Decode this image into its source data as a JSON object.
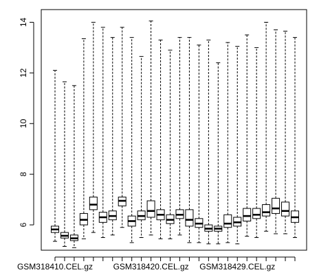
{
  "chart_data": {
    "type": "boxplot",
    "title": "",
    "xlabel": "",
    "ylabel": "",
    "ylim": [
      5,
      14.5
    ],
    "yticks": [
      6,
      8,
      10,
      12,
      14
    ],
    "x_tick_labels": [
      {
        "index": 0,
        "label": "GSM318410.CEL.gz"
      },
      {
        "index": 10,
        "label": "GSM318420.CEL.gz"
      },
      {
        "index": 19,
        "label": "GSM318429.CEL.gz"
      }
    ],
    "boxes": [
      {
        "min": 5.35,
        "q1": 5.7,
        "median": 5.82,
        "q3": 5.95,
        "max": 12.1
      },
      {
        "min": 5.15,
        "q1": 5.48,
        "median": 5.57,
        "q3": 5.7,
        "max": 11.65
      },
      {
        "min": 5.1,
        "q1": 5.38,
        "median": 5.47,
        "q3": 5.6,
        "max": 11.5
      },
      {
        "min": 5.45,
        "q1": 6.0,
        "median": 6.2,
        "q3": 6.45,
        "max": 13.35
      },
      {
        "min": 5.7,
        "q1": 6.6,
        "median": 6.8,
        "q3": 7.1,
        "max": 14.0
      },
      {
        "min": 5.5,
        "q1": 6.1,
        "median": 6.3,
        "q3": 6.5,
        "max": 13.8
      },
      {
        "min": 5.6,
        "q1": 6.2,
        "median": 6.35,
        "q3": 6.55,
        "max": 13.4
      },
      {
        "min": 5.9,
        "q1": 6.75,
        "median": 6.95,
        "q3": 7.1,
        "max": 13.8
      },
      {
        "min": 5.3,
        "q1": 5.95,
        "median": 6.15,
        "q3": 6.35,
        "max": 13.4
      },
      {
        "min": 5.5,
        "q1": 6.2,
        "median": 6.35,
        "q3": 6.55,
        "max": 12.65
      },
      {
        "min": 5.6,
        "q1": 6.3,
        "median": 6.55,
        "q3": 6.95,
        "max": 14.05
      },
      {
        "min": 5.45,
        "q1": 6.2,
        "median": 6.4,
        "q3": 6.6,
        "max": 13.3
      },
      {
        "min": 5.45,
        "q1": 6.05,
        "median": 6.2,
        "q3": 6.4,
        "max": 12.9
      },
      {
        "min": 5.6,
        "q1": 6.25,
        "median": 6.4,
        "q3": 6.6,
        "max": 13.4
      },
      {
        "min": 5.3,
        "q1": 5.95,
        "median": 6.2,
        "q3": 6.6,
        "max": 13.4
      },
      {
        "min": 5.3,
        "q1": 5.9,
        "median": 6.05,
        "q3": 6.25,
        "max": 13.1
      },
      {
        "min": 5.25,
        "q1": 5.75,
        "median": 5.85,
        "q3": 6.0,
        "max": 13.3
      },
      {
        "min": 5.25,
        "q1": 5.75,
        "median": 5.85,
        "q3": 5.95,
        "max": 12.4
      },
      {
        "min": 5.3,
        "q1": 5.9,
        "median": 6.05,
        "q3": 6.4,
        "max": 13.2
      },
      {
        "min": 5.25,
        "q1": 5.95,
        "median": 6.1,
        "q3": 6.3,
        "max": 13.05
      },
      {
        "min": 5.55,
        "q1": 6.15,
        "median": 6.35,
        "q3": 6.65,
        "max": 13.5
      },
      {
        "min": 5.5,
        "q1": 6.25,
        "median": 6.4,
        "q3": 6.65,
        "max": 13.0
      },
      {
        "min": 5.75,
        "q1": 6.35,
        "median": 6.5,
        "q3": 6.8,
        "max": 14.0
      },
      {
        "min": 5.65,
        "q1": 6.45,
        "median": 6.65,
        "q3": 7.05,
        "max": 13.7
      },
      {
        "min": 5.65,
        "q1": 6.35,
        "median": 6.55,
        "q3": 6.9,
        "max": 13.65
      },
      {
        "min": 5.5,
        "q1": 6.1,
        "median": 6.3,
        "q3": 6.55,
        "max": 13.4
      }
    ]
  }
}
